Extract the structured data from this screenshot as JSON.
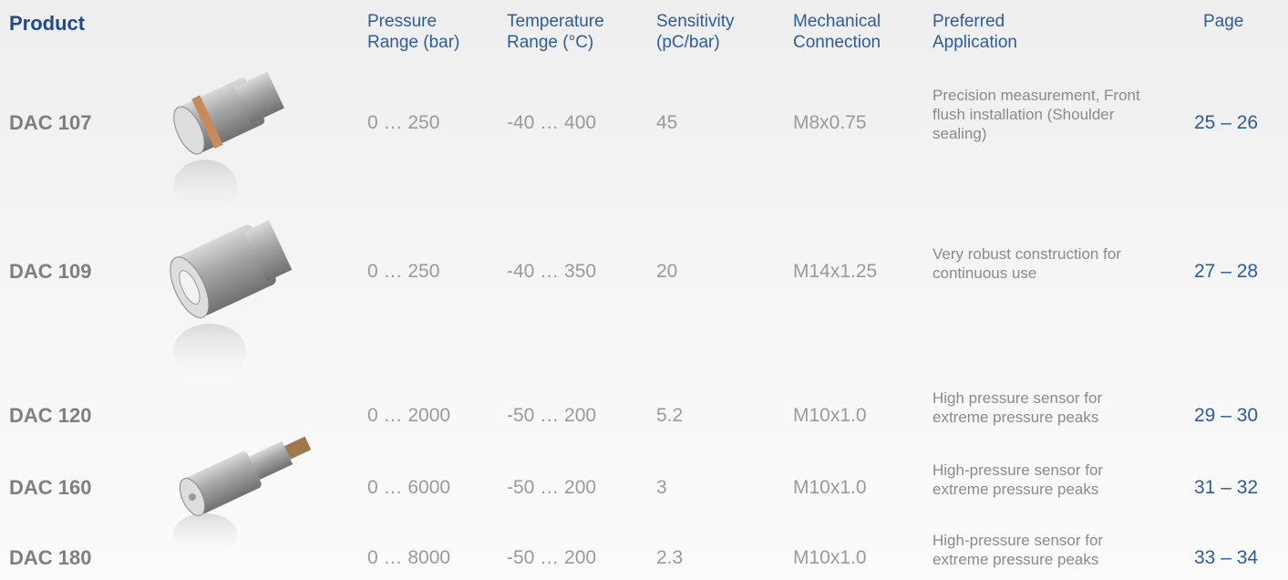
{
  "table": {
    "header": {
      "product": "Product",
      "columns": [
        [
          "Pressure",
          "Range (bar)"
        ],
        [
          "Temperature",
          "Range (°C)"
        ],
        [
          "Sensitivity",
          "(pC/bar)"
        ],
        [
          "Mechanical",
          "Connection"
        ],
        [
          "Preferred",
          "Application"
        ],
        [
          "Page"
        ]
      ]
    },
    "rows": [
      {
        "product": "DAC 107",
        "pressure": "0 … 250",
        "temperature": "-40 … 400",
        "sensitivity": "45",
        "connection": "M8x0.75",
        "application": [
          "Precision measurement, Front",
          "flush installation (Shoulder",
          "sealing)"
        ],
        "page": "25 – 26"
      },
      {
        "product": "DAC 109",
        "pressure": "0 … 250",
        "temperature": "-40 … 350",
        "sensitivity": "20",
        "connection": "M14x1.25",
        "application": [
          "Very robust construction for",
          "continuous use"
        ],
        "page": "27 – 28"
      },
      {
        "product": "DAC 120",
        "pressure": "0 … 2000",
        "temperature": "-50 … 200",
        "sensitivity": "5.2",
        "connection": "M10x1.0",
        "application": [
          "High pressure sensor for",
          "extreme pressure peaks"
        ],
        "page": "29 – 30"
      },
      {
        "product": "DAC 160",
        "pressure": "0 … 6000",
        "temperature": "-50 … 200",
        "sensitivity": "3",
        "connection": "M10x1.0",
        "application": [
          "High-pressure sensor for",
          "extreme pressure peaks"
        ],
        "page": "31 – 32"
      },
      {
        "product": "DAC 180",
        "pressure": "0 … 8000",
        "temperature": "-50 … 200",
        "sensitivity": "2.3",
        "connection": "M10x1.0",
        "application": [
          "High-pressure sensor for",
          "extreme pressure peaks"
        ],
        "page": "33 – 34"
      }
    ]
  }
}
